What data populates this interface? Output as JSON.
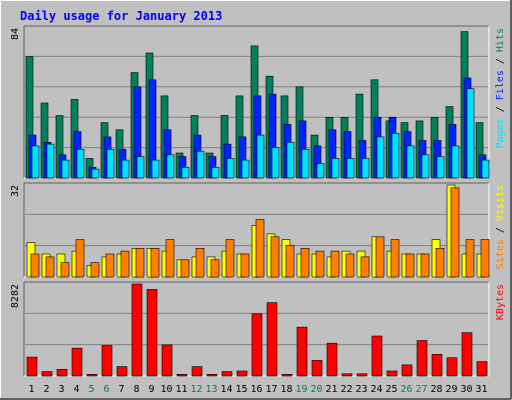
{
  "title": "Daily usage for January 2013",
  "colors": {
    "frame_bg": "#c0c0c0",
    "panel_bg": "#c0c0c0",
    "hits": "#00805c",
    "files": "#0024ff",
    "pages": "#00e0ff",
    "visits": "#ffff00",
    "sites": "#ff8000",
    "kbytes": "#ff0000",
    "weekend_day": "#00805c",
    "weekday": "#000000",
    "title": "#0000ff"
  },
  "chart_data": [
    {
      "type": "bar",
      "name": "hits-files-pages",
      "ymax_label": "84",
      "ylim": [
        0,
        84
      ],
      "right_label": [
        {
          "text": "Pages",
          "color": "#00e0ff"
        },
        {
          "text": " / ",
          "color": "#000000"
        },
        {
          "text": "Files",
          "color": "#0024ff"
        },
        {
          "text": " / ",
          "color": "#000000"
        },
        {
          "text": "Hits",
          "color": "#00805c"
        }
      ],
      "x": [
        1,
        2,
        3,
        4,
        5,
        6,
        7,
        8,
        9,
        10,
        11,
        12,
        13,
        14,
        15,
        16,
        17,
        18,
        19,
        20,
        21,
        22,
        23,
        24,
        25,
        26,
        27,
        28,
        29,
        30,
        31
      ],
      "series": [
        {
          "name": "Hits",
          "values": [
            68,
            42,
            35,
            44,
            11,
            31,
            27,
            59,
            70,
            46,
            14,
            35,
            14,
            35,
            46,
            74,
            57,
            46,
            51,
            24,
            34,
            34,
            47,
            55,
            32,
            31,
            32,
            34,
            40,
            82,
            31
          ]
        },
        {
          "name": "Files",
          "values": [
            24,
            20,
            13,
            26,
            6,
            23,
            16,
            51,
            55,
            27,
            12,
            24,
            12,
            19,
            23,
            46,
            47,
            30,
            32,
            18,
            27,
            26,
            21,
            34,
            34,
            26,
            21,
            21,
            30,
            56,
            13
          ]
        },
        {
          "name": "Pages",
          "values": [
            18,
            19,
            10,
            16,
            5,
            16,
            10,
            12,
            10,
            13,
            6,
            15,
            6,
            11,
            10,
            24,
            17,
            20,
            16,
            8,
            11,
            11,
            11,
            23,
            25,
            18,
            13,
            12,
            18,
            50,
            10
          ]
        }
      ]
    },
    {
      "type": "bar",
      "name": "visits-sites",
      "ymax_label": "32",
      "ylim": [
        0,
        32
      ],
      "right_label": [
        {
          "text": "Sites",
          "color": "#ff8000"
        },
        {
          "text": " / ",
          "color": "#000000"
        },
        {
          "text": "Visits",
          "color": "#ffff00"
        }
      ],
      "x": [
        1,
        2,
        3,
        4,
        5,
        6,
        7,
        8,
        9,
        10,
        11,
        12,
        13,
        14,
        15,
        16,
        17,
        18,
        19,
        20,
        21,
        22,
        23,
        24,
        25,
        26,
        27,
        28,
        29,
        30,
        31
      ],
      "series": [
        {
          "name": "Visits",
          "values": [
            12,
            8,
            8,
            9,
            4,
            7,
            8,
            10,
            10,
            9,
            6,
            7,
            7,
            9,
            8,
            18,
            15,
            13,
            8,
            8,
            7,
            9,
            9,
            14,
            9,
            8,
            8,
            13,
            32,
            8,
            8
          ]
        },
        {
          "name": "Sites",
          "values": [
            8,
            7,
            5,
            13,
            5,
            8,
            9,
            10,
            10,
            13,
            6,
            10,
            6,
            13,
            8,
            20,
            14,
            11,
            10,
            9,
            9,
            8,
            7,
            14,
            13,
            8,
            8,
            10,
            31,
            13,
            13
          ]
        }
      ]
    },
    {
      "type": "bar",
      "name": "kbytes",
      "ymax_label": "8282",
      "ylim": [
        0,
        8282
      ],
      "right_label": [
        {
          "text": "KBytes",
          "color": "#ff0000"
        }
      ],
      "x": [
        1,
        2,
        3,
        4,
        5,
        6,
        7,
        8,
        9,
        10,
        11,
        12,
        13,
        14,
        15,
        16,
        17,
        18,
        19,
        20,
        21,
        22,
        23,
        24,
        25,
        26,
        27,
        28,
        29,
        30,
        31
      ],
      "series": [
        {
          "name": "KBytes",
          "values": [
            1700,
            400,
            600,
            2500,
            150,
            2750,
            850,
            8282,
            7800,
            2800,
            150,
            850,
            150,
            400,
            450,
            5600,
            6600,
            150,
            4400,
            1400,
            2950,
            200,
            200,
            3600,
            450,
            1000,
            3200,
            1950,
            1650,
            3900,
            1300
          ]
        }
      ]
    }
  ],
  "days": [
    "1",
    "2",
    "3",
    "4",
    "5",
    "6",
    "7",
    "8",
    "9",
    "10",
    "11",
    "12",
    "13",
    "14",
    "15",
    "16",
    "17",
    "18",
    "19",
    "20",
    "21",
    "22",
    "23",
    "24",
    "25",
    "26",
    "27",
    "28",
    "29",
    "30",
    "31"
  ],
  "weekend_days": [
    5,
    6,
    12,
    13,
    19,
    20,
    26,
    27
  ]
}
